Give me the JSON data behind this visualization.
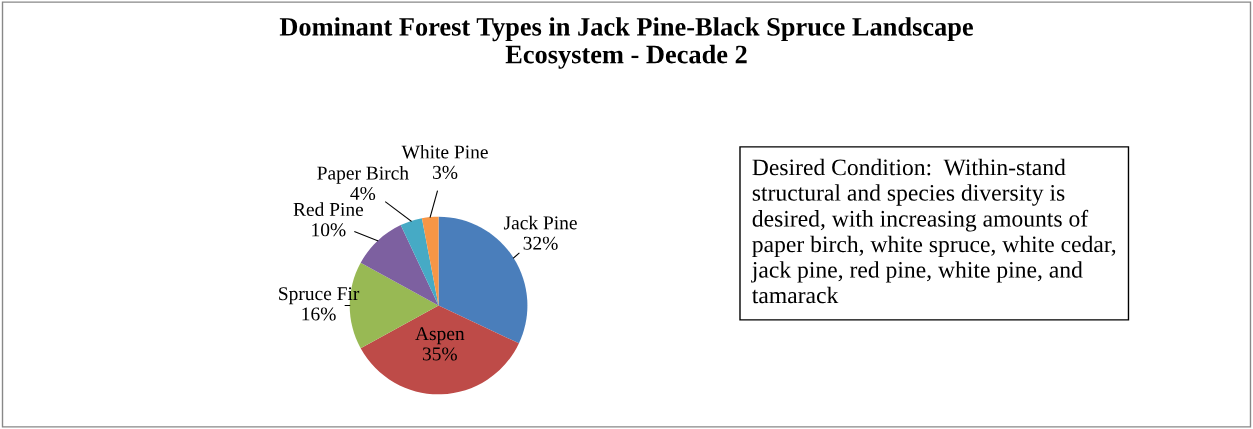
{
  "chart_data": {
    "type": "pie",
    "title": "Dominant Forest Types in Jack Pine-Black Spruce Landscape\nEcosystem - Decade 2",
    "categories": [
      "Jack Pine",
      "Aspen",
      "Spruce Fir",
      "Red Pine",
      "Paper Birch",
      "White Pine"
    ],
    "values": [
      32,
      35,
      16,
      10,
      4,
      3
    ],
    "value_labels": [
      "32%",
      "35%",
      "16%",
      "10%",
      "4%",
      "3%"
    ],
    "colors": [
      "#4a7ebb",
      "#be4b48",
      "#98b954",
      "#7d60a0",
      "#46aac5",
      "#f79646"
    ],
    "annotations": [
      "Desired Condition:  Within-stand structural and species diversity is desired, with increasing amounts of paper birch, white spruce, white cedar, jack pine, red pine, white pine, and tamarack"
    ]
  }
}
